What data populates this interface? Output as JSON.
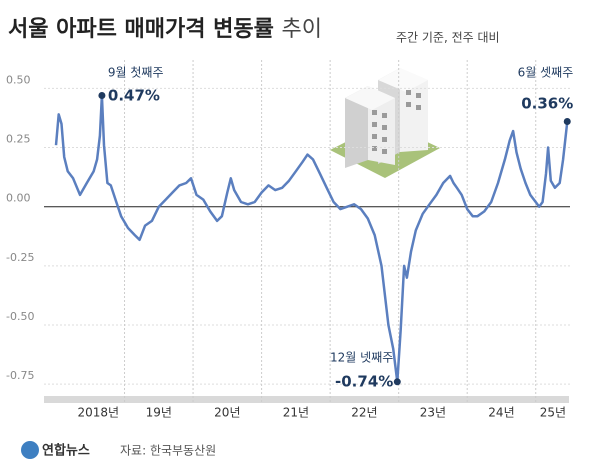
{
  "chart_data": {
    "type": "line",
    "title": "서울 아파트 매매가격 변동률",
    "title_suffix": "추이",
    "subtitle": "주간 기준, 전주 대비",
    "source": "자료: 한국부동산원",
    "logo": "연합뉴스",
    "xlim": [
      2018,
      2025.5
    ],
    "xticks": [
      {
        "value": 2018,
        "label": "2018년"
      },
      {
        "value": 2019,
        "label": "19년"
      },
      {
        "value": 2020,
        "label": "20년"
      },
      {
        "value": 2021,
        "label": "21년"
      },
      {
        "value": 2022,
        "label": "22년"
      },
      {
        "value": 2023,
        "label": "23년"
      },
      {
        "value": 2024,
        "label": "24년"
      },
      {
        "value": 2025,
        "label": "25년"
      }
    ],
    "ylim": [
      -0.8,
      0.62
    ],
    "yticks": [
      {
        "value": 0.5,
        "label": "0.50"
      },
      {
        "value": 0.25,
        "label": "0.25"
      },
      {
        "value": 0,
        "label": "0.00"
      },
      {
        "value": -0.25,
        "label": "-0.25"
      },
      {
        "value": -0.5,
        "label": "-0.50"
      },
      {
        "value": -0.75,
        "label": "-0.75"
      }
    ],
    "grid": true,
    "series": [
      {
        "color": "#5b7fbf",
        "x": [
          2018.0,
          2018.04,
          2018.08,
          2018.12,
          2018.17,
          2018.25,
          2018.35,
          2018.45,
          2018.55,
          2018.6,
          2018.64,
          2018.67,
          2018.7,
          2018.75,
          2018.8,
          2018.88,
          2018.95,
          2019.05,
          2019.15,
          2019.22,
          2019.3,
          2019.4,
          2019.5,
          2019.6,
          2019.7,
          2019.8,
          2019.9,
          2019.97,
          2020.05,
          2020.15,
          2020.25,
          2020.35,
          2020.42,
          2020.5,
          2020.55,
          2020.6,
          2020.7,
          2020.8,
          2020.9,
          2021.0,
          2021.1,
          2021.2,
          2021.3,
          2021.4,
          2021.5,
          2021.6,
          2021.67,
          2021.75,
          2021.85,
          2021.95,
          2022.05,
          2022.15,
          2022.25,
          2022.35,
          2022.45,
          2022.55,
          2022.65,
          2022.75,
          2022.85,
          2022.92,
          2022.98,
          2023.03,
          2023.08,
          2023.12,
          2023.18,
          2023.25,
          2023.35,
          2023.45,
          2023.55,
          2023.65,
          2023.75,
          2023.8,
          2023.85,
          2023.92,
          2024.0,
          2024.08,
          2024.15,
          2024.25,
          2024.35,
          2024.45,
          2024.55,
          2024.62,
          2024.67,
          2024.72,
          2024.78,
          2024.85,
          2024.92,
          2025.0,
          2025.05,
          2025.1,
          2025.15,
          2025.18,
          2025.22,
          2025.28,
          2025.35,
          2025.4,
          2025.46
        ],
        "values": [
          0.26,
          0.39,
          0.35,
          0.21,
          0.15,
          0.12,
          0.05,
          0.1,
          0.15,
          0.2,
          0.3,
          0.47,
          0.26,
          0.1,
          0.09,
          0.02,
          -0.04,
          -0.09,
          -0.12,
          -0.14,
          -0.08,
          -0.06,
          0.0,
          0.03,
          0.06,
          0.09,
          0.1,
          0.12,
          0.05,
          0.03,
          -0.02,
          -0.06,
          -0.04,
          0.06,
          0.12,
          0.07,
          0.02,
          0.01,
          0.02,
          0.06,
          0.09,
          0.07,
          0.08,
          0.11,
          0.15,
          0.19,
          0.22,
          0.2,
          0.14,
          0.08,
          0.02,
          -0.01,
          0.0,
          0.01,
          -0.01,
          -0.05,
          -0.12,
          -0.25,
          -0.5,
          -0.6,
          -0.74,
          -0.52,
          -0.25,
          -0.3,
          -0.19,
          -0.1,
          -0.03,
          0.01,
          0.05,
          0.1,
          0.13,
          0.1,
          0.08,
          0.05,
          -0.01,
          -0.04,
          -0.04,
          -0.02,
          0.02,
          0.1,
          0.2,
          0.28,
          0.32,
          0.23,
          0.16,
          0.1,
          0.05,
          0.02,
          0.0,
          0.02,
          0.14,
          0.25,
          0.11,
          0.08,
          0.1,
          0.2,
          0.36
        ]
      }
    ],
    "annotations": [
      {
        "text": "9월 첫째주",
        "x": 2018.67,
        "value": 0.47,
        "value_label": "0.47%"
      },
      {
        "text": "12월 넷째주",
        "x": 2022.98,
        "value": -0.74,
        "value_label": "-0.74%"
      },
      {
        "text": "6월 셋째주",
        "x": 2025.46,
        "value": 0.36,
        "value_label": "0.36%"
      }
    ]
  }
}
